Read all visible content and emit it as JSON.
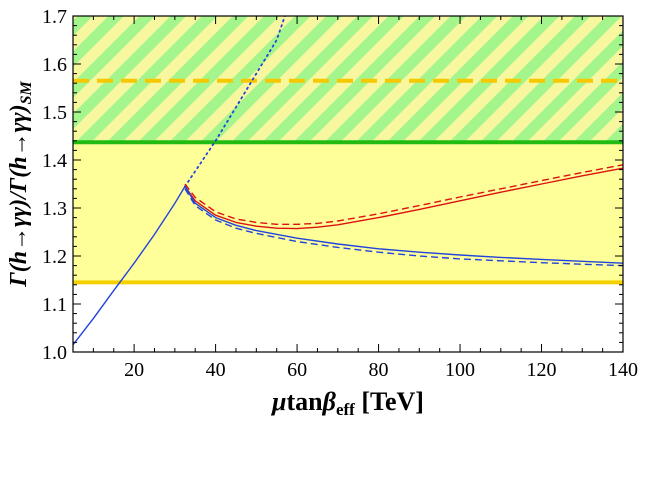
{
  "chart_data": {
    "type": "line",
    "title": "",
    "xlabel_parts": [
      "μ",
      "tan",
      "β",
      "eff",
      " [TeV]"
    ],
    "ylabel_parts": [
      "Γ(",
      "h",
      "→γγ)/Γ(",
      "h",
      "→γγ)",
      "SM"
    ],
    "xlim": [
      5,
      140
    ],
    "ylim": [
      1.0,
      1.7
    ],
    "xticks": [
      20,
      40,
      60,
      80,
      100,
      120,
      140
    ],
    "xtick_labels": [
      "20",
      "40",
      "60",
      "80",
      "100",
      "120",
      "140"
    ],
    "yticks": [
      1.0,
      1.1,
      1.2,
      1.3,
      1.4,
      1.5,
      1.6,
      1.7
    ],
    "ytick_labels": [
      "1.0",
      "1.1",
      "1.2",
      "1.3",
      "1.4",
      "1.5",
      "1.6",
      "1.7"
    ],
    "regions": [
      {
        "name": "yellow-band",
        "y_from": 1.145,
        "y_to": 1.44,
        "color": "#ffff99"
      },
      {
        "name": "hatched-band",
        "y_from": 1.44,
        "y_to": 1.7,
        "colors": [
          "#a5f58d",
          "#f7f7a0"
        ]
      }
    ],
    "hlines": [
      {
        "name": "lower-bound",
        "y": 1.145,
        "color": "#f5d000",
        "style": "solid"
      },
      {
        "name": "upper-bound",
        "y": 1.437,
        "color": "#22bb11",
        "style": "solid"
      },
      {
        "name": "central-value",
        "y": 1.565,
        "color": "#f5c800",
        "style": "dashed"
      }
    ],
    "series": [
      {
        "name": "rising-solid",
        "color": "#2244dd",
        "style": "solid",
        "x": [
          5,
          10,
          15,
          20,
          25,
          30,
          32.5
        ],
        "y": [
          1.015,
          1.07,
          1.128,
          1.185,
          1.245,
          1.31,
          1.345
        ]
      },
      {
        "name": "rising-dotted",
        "color": "#2244dd",
        "style": "dotted",
        "x": [
          32.5,
          40,
          45,
          50,
          55,
          57
        ],
        "y": [
          1.345,
          1.44,
          1.51,
          1.58,
          1.65,
          1.7
        ]
      },
      {
        "name": "red-solid",
        "color": "#dd1111",
        "style": "solid",
        "x": [
          32.5,
          35,
          40,
          45,
          50,
          55,
          60,
          65,
          70,
          80,
          90,
          100,
          110,
          120,
          130,
          140
        ],
        "y": [
          1.345,
          1.315,
          1.285,
          1.27,
          1.262,
          1.258,
          1.257,
          1.26,
          1.265,
          1.28,
          1.297,
          1.315,
          1.333,
          1.35,
          1.367,
          1.383
        ]
      },
      {
        "name": "red-dashed",
        "color": "#dd1111",
        "style": "dashed",
        "x": [
          32.5,
          35,
          40,
          45,
          50,
          55,
          60,
          65,
          70,
          80,
          90,
          100,
          110,
          120,
          130,
          140
        ],
        "y": [
          1.35,
          1.322,
          1.292,
          1.277,
          1.27,
          1.266,
          1.266,
          1.268,
          1.273,
          1.288,
          1.305,
          1.323,
          1.34,
          1.357,
          1.374,
          1.39
        ]
      },
      {
        "name": "blue-solid",
        "color": "#2244dd",
        "style": "solid",
        "x": [
          32.5,
          35,
          40,
          45,
          50,
          60,
          70,
          80,
          90,
          100,
          110,
          120,
          130,
          140
        ],
        "y": [
          1.345,
          1.31,
          1.28,
          1.264,
          1.253,
          1.237,
          1.225,
          1.215,
          1.208,
          1.202,
          1.197,
          1.193,
          1.189,
          1.185
        ]
      },
      {
        "name": "blue-dashed",
        "color": "#2244dd",
        "style": "dashed",
        "x": [
          32.5,
          35,
          40,
          45,
          50,
          60,
          70,
          80,
          90,
          100,
          110,
          120,
          130,
          140
        ],
        "y": [
          1.34,
          1.305,
          1.275,
          1.258,
          1.247,
          1.23,
          1.218,
          1.208,
          1.2,
          1.194,
          1.19,
          1.186,
          1.183,
          1.18
        ]
      }
    ]
  }
}
